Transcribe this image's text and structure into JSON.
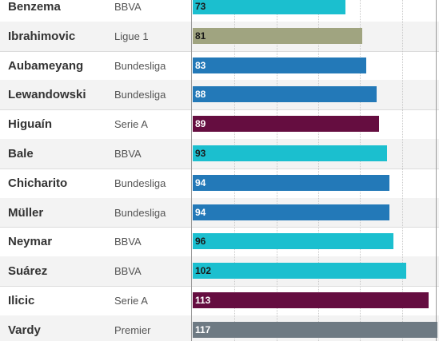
{
  "colors": {
    "BBVA": "#1bbfcf",
    "Ligue 1": "#a0a480",
    "Bundesliga": "#2379b8",
    "Serie A": "#650d40",
    "Premier": "#6e7a83"
  },
  "label_colors": {
    "BBVA": "#1a1a1a",
    "Ligue 1": "#1a1a1a",
    "Bundesliga": "#ffffff",
    "Serie A": "#ffffff",
    "Premier": "#ffffff"
  },
  "chart_data": {
    "type": "bar",
    "orientation": "horizontal",
    "xlim": [
      0,
      117
    ],
    "grid": true,
    "rows": [
      {
        "player": "Benzema",
        "league": "BBVA",
        "value": 73
      },
      {
        "player": "Ibrahimovic",
        "league": "Ligue 1",
        "value": 81
      },
      {
        "player": "Aubameyang",
        "league": "Bundesliga",
        "value": 83
      },
      {
        "player": "Lewandowski",
        "league": "Bundesliga",
        "value": 88
      },
      {
        "player": "Higuaín",
        "league": "Serie A",
        "value": 89
      },
      {
        "player": "Bale",
        "league": "BBVA",
        "value": 93
      },
      {
        "player": "Chicharito",
        "league": "Bundesliga",
        "value": 94
      },
      {
        "player": "Müller",
        "league": "Bundesliga",
        "value": 94
      },
      {
        "player": "Neymar",
        "league": "BBVA",
        "value": 96
      },
      {
        "player": "Suárez",
        "league": "BBVA",
        "value": 102
      },
      {
        "player": "Ilicic",
        "league": "Serie A",
        "value": 113
      },
      {
        "player": "Vardy",
        "league": "Premier",
        "value": 117
      }
    ]
  }
}
